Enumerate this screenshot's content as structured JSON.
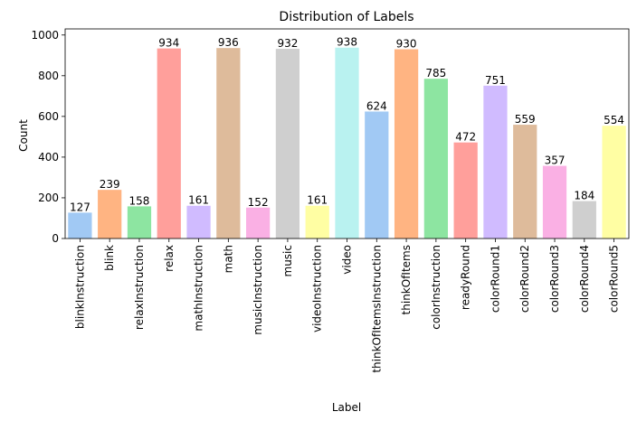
{
  "chart_data": {
    "type": "bar",
    "title": "Distribution of Labels",
    "xlabel": "Label",
    "ylabel": "Count",
    "ylim": [
      0,
      1030
    ],
    "yticks": [
      0,
      200,
      400,
      600,
      800,
      1000
    ],
    "grid": false,
    "categories": [
      "blinkInstruction",
      "blink",
      "relaxInstruction",
      "relax",
      "mathInstruction",
      "math",
      "musicInstruction",
      "music",
      "videoInstruction",
      "video",
      "thinkOfItemsInstruction",
      "thinkOfItems",
      "colorInstruction",
      "readyRound",
      "colorRound1",
      "colorRound2",
      "colorRound3",
      "colorRound4",
      "colorRound5"
    ],
    "values": [
      127,
      239,
      158,
      934,
      161,
      936,
      152,
      932,
      161,
      938,
      624,
      930,
      785,
      472,
      751,
      559,
      357,
      184,
      554
    ],
    "colors": [
      "#a1c9f4",
      "#ffb482",
      "#8de5a1",
      "#ff9f9b",
      "#d0bbff",
      "#debb9b",
      "#fab0e4",
      "#cfcfcf",
      "#fffea3",
      "#b9f2f0",
      "#a1c9f4",
      "#ffb482",
      "#8de5a1",
      "#ff9f9b",
      "#d0bbff",
      "#debb9b",
      "#fab0e4",
      "#cfcfcf",
      "#fffea3"
    ]
  }
}
